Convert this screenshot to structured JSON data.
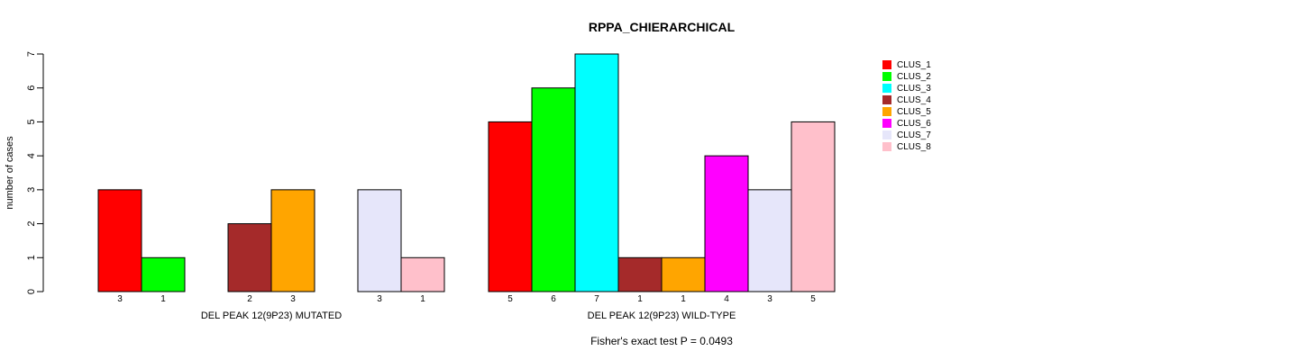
{
  "chart_data": {
    "type": "bar",
    "title": "RPPA_CHIERARCHICAL",
    "ylabel": "number of cases",
    "ylim": [
      0,
      7
    ],
    "yticks": [
      "0",
      "1",
      "2",
      "3",
      "4",
      "5",
      "6",
      "7"
    ],
    "groups": [
      {
        "label": "DEL PEAK 12(9P23) MUTATED",
        "values": [
          3,
          1,
          0,
          2,
          3,
          0,
          3,
          1
        ],
        "labels": [
          "3",
          "1",
          "",
          "2",
          "3",
          "",
          "3",
          "1"
        ]
      },
      {
        "label": "DEL PEAK 12(9P23) WILD-TYPE",
        "values": [
          5,
          6,
          7,
          1,
          1,
          4,
          3,
          5
        ],
        "labels": [
          "5",
          "6",
          "7",
          "1",
          "1",
          "4",
          "3",
          "5"
        ]
      }
    ],
    "series": [
      {
        "name": "CLUS_1",
        "color": "#ff0000"
      },
      {
        "name": "CLUS_2",
        "color": "#00ff00"
      },
      {
        "name": "CLUS_3",
        "color": "#00ffff"
      },
      {
        "name": "CLUS_4",
        "color": "#a52a2a"
      },
      {
        "name": "CLUS_5",
        "color": "#ffa500"
      },
      {
        "name": "CLUS_6",
        "color": "#ff00ff"
      },
      {
        "name": "CLUS_7",
        "color": "#e6e6fa"
      },
      {
        "name": "CLUS_8",
        "color": "#ffc0cb"
      }
    ],
    "legend": "right",
    "footer": "Fisher's exact test P = 0.0493"
  }
}
